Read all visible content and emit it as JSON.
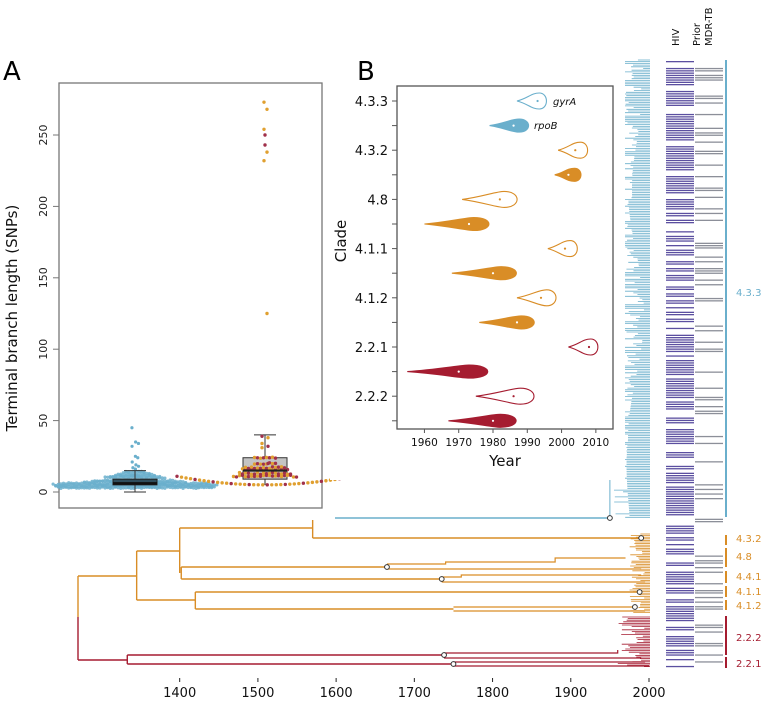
{
  "figure": {
    "panels": [
      "A",
      "B"
    ],
    "colors": {
      "lineage_4_3_3": "#6aafcc",
      "lineage_4_other": "#d98d26",
      "lineage_2": "#a51c30",
      "hiv_bar": "#5b4fa0",
      "mdr_bar": "#8c8f99",
      "box_fill_1": "#2f4d5c",
      "box_fill_2": "#c4c4c4"
    }
  },
  "chart_data": [
    {
      "id": "A",
      "type": "scatter",
      "subtype": "beeswarm-boxplot",
      "title": "",
      "panel_label": "A",
      "xlabel": "",
      "ylabel": "Terminal branch length (SNPs)",
      "ylim": [
        -8,
        282
      ],
      "yticks": [
        0,
        50,
        100,
        150,
        200,
        250
      ],
      "groups": [
        {
          "name": "group-1",
          "color": "#6aafcc",
          "box": {
            "min": 0,
            "q1": 5,
            "median": 6,
            "q3": 9,
            "max": 15
          },
          "outliers": [
            45,
            35,
            34,
            32,
            25,
            24,
            21,
            19,
            18,
            17,
            16
          ]
        },
        {
          "name": "group-2",
          "colors": [
            "#e0a030",
            "#a0304a"
          ],
          "box": {
            "min": 5,
            "q1": 9,
            "median": 15,
            "q3": 24,
            "max": 40
          },
          "outliers_orange": [
            273,
            268,
            254,
            238,
            232,
            125
          ],
          "outliers_red": [
            250,
            243
          ]
        }
      ]
    },
    {
      "id": "B",
      "type": "violin",
      "panel_label": "B",
      "xlabel": "Year",
      "ylabel": "Clade",
      "xlim": [
        1952,
        2015
      ],
      "xticks": [
        1960,
        1970,
        1980,
        1990,
        2000,
        2010
      ],
      "yticklabels": [
        "4.3.3",
        "4.3.2",
        "4.8",
        "4.1.1",
        "4.1.2",
        "2.2.1",
        "2.2.2"
      ],
      "legend": [
        {
          "label": "gyrA",
          "style": "outline"
        },
        {
          "label": "rpoB",
          "style": "filled"
        }
      ],
      "series": [
        {
          "clade": "4.3.3",
          "gene": "gyrA",
          "style": "outline",
          "color": "#6aafcc",
          "median": 1993,
          "range": [
            1987,
            1996
          ]
        },
        {
          "clade": "4.3.3",
          "gene": "rpoB",
          "style": "filled",
          "color": "#6aafcc",
          "median": 1986,
          "range": [
            1979,
            1991
          ]
        },
        {
          "clade": "4.3.2",
          "gene": "gyrA",
          "style": "outline",
          "color": "#d98d26",
          "median": 2004,
          "range": [
            1999,
            2008
          ]
        },
        {
          "clade": "4.3.2",
          "gene": "rpoB",
          "style": "filled",
          "color": "#d98d26",
          "median": 2002,
          "range": [
            1998,
            2006
          ]
        },
        {
          "clade": "4.8",
          "gene": "gyrA",
          "style": "outline",
          "color": "#d98d26",
          "median": 1982,
          "range": [
            1971,
            1988
          ]
        },
        {
          "clade": "4.8",
          "gene": "rpoB",
          "style": "filled",
          "color": "#d98d26",
          "median": 1973,
          "range": [
            1960,
            1980
          ]
        },
        {
          "clade": "4.1.1",
          "gene": "gyrA",
          "style": "outline",
          "color": "#d98d26",
          "median": 2001,
          "range": [
            1996,
            2005
          ]
        },
        {
          "clade": "4.1.1",
          "gene": "rpoB",
          "style": "filled",
          "color": "#d98d26",
          "median": 1980,
          "range": [
            1968,
            1988
          ]
        },
        {
          "clade": "4.1.2",
          "gene": "gyrA",
          "style": "outline",
          "color": "#d98d26",
          "median": 1994,
          "range": [
            1987,
            1999
          ]
        },
        {
          "clade": "4.1.2",
          "gene": "rpoB",
          "style": "filled",
          "color": "#d98d26",
          "median": 1987,
          "range": [
            1976,
            1993
          ]
        },
        {
          "clade": "2.2.1",
          "gene": "gyrA",
          "style": "outline",
          "color": "#a51c30",
          "median": 2008,
          "range": [
            2002,
            2011
          ]
        },
        {
          "clade": "2.2.1",
          "gene": "rpoB",
          "style": "filled",
          "color": "#a51c30",
          "median": 1970,
          "range": [
            1955,
            1980
          ]
        },
        {
          "clade": "2.2.2",
          "gene": "gyrA",
          "style": "outline",
          "color": "#a51c30",
          "median": 1986,
          "range": [
            1975,
            1993
          ]
        },
        {
          "clade": "2.2.2",
          "gene": "rpoB",
          "style": "filled",
          "color": "#a51c30",
          "median": 1980,
          "range": [
            1967,
            1988
          ]
        }
      ]
    },
    {
      "id": "tree",
      "type": "line",
      "subtype": "time-scaled phylogeny",
      "xlabel": "",
      "xlim": [
        1230,
        2015
      ],
      "xticks": [
        1400,
        1500,
        1600,
        1700,
        1800,
        1900,
        2000
      ],
      "columns": [
        "HIV",
        "Prior MDR-TB"
      ],
      "clade_labels": [
        {
          "label": "4.3.3",
          "color": "#6aafcc"
        },
        {
          "label": "4.3.2",
          "color": "#d98d26"
        },
        {
          "label": "4.8",
          "color": "#d98d26"
        },
        {
          "label": "4.4.1",
          "color": "#d98d26"
        },
        {
          "label": "4.1.1",
          "color": "#d98d26"
        },
        {
          "label": "4.1.2",
          "color": "#d98d26"
        },
        {
          "label": "2.2.2",
          "color": "#a51c30"
        },
        {
          "label": "2.2.1",
          "color": "#a51c30"
        }
      ],
      "marked_nodes_years": [
        1950,
        1990,
        1665,
        1735,
        1988,
        1982,
        1738,
        1750
      ],
      "root_year": 1270
    }
  ]
}
